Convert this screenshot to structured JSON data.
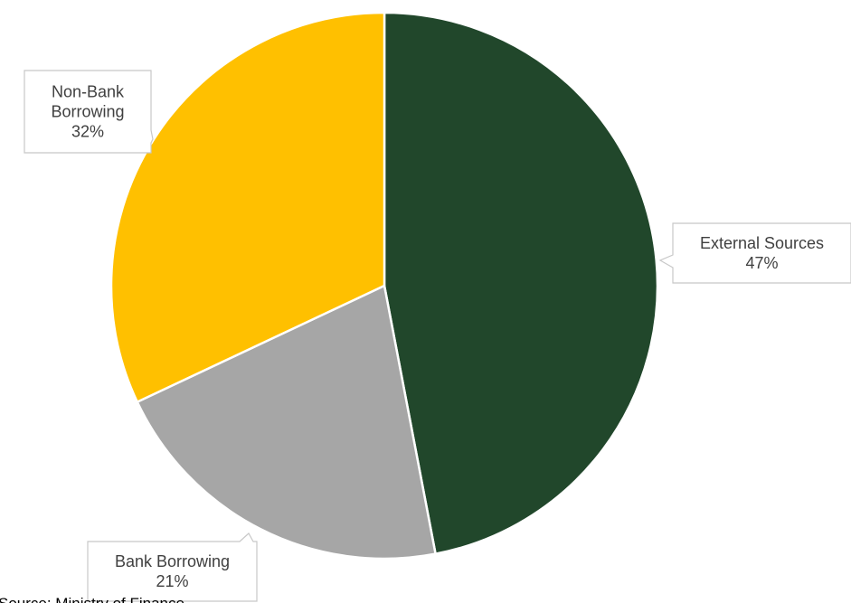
{
  "chart_data": {
    "type": "pie",
    "slices": [
      {
        "label": "External Sources",
        "percent_text": "47%",
        "value": 47,
        "color": "#21472b"
      },
      {
        "label": "Bank Borrowing",
        "percent_text": "21%",
        "value": 21,
        "color": "#a6a6a6"
      },
      {
        "label": "Non-Bank Borrowing",
        "label_lines": [
          "Non-Bank",
          "Borrowing"
        ],
        "percent_text": "32%",
        "value": 32,
        "color": "#ffc000"
      }
    ],
    "start_angle_deg": 0,
    "direction": "clockwise",
    "legend": "none",
    "label_style": "callout"
  },
  "source_note": "Source: Ministry of Finance"
}
